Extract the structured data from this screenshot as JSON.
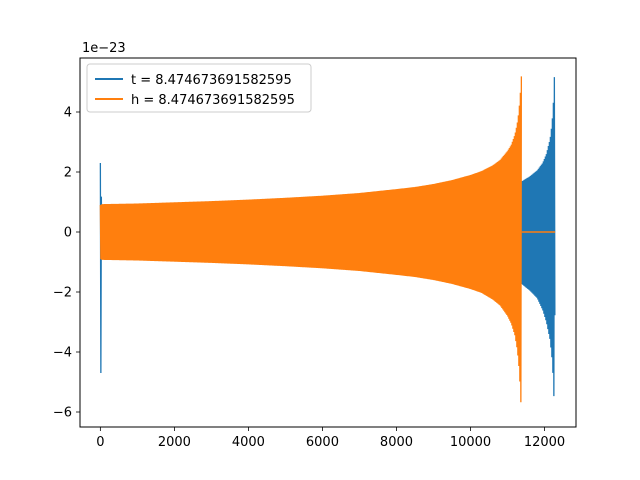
{
  "chart_data": {
    "type": "line",
    "title": "",
    "xlabel": "",
    "ylabel": "",
    "offset_text": "1e−23",
    "xlim": [
      -550,
      12850
    ],
    "ylim": [
      -6.5,
      5.8
    ],
    "xticks": [
      0,
      2000,
      4000,
      6000,
      8000,
      10000,
      12000
    ],
    "xtick_labels": [
      "0",
      "2000",
      "4000",
      "6000",
      "8000",
      "10000",
      "12000"
    ],
    "yticks": [
      -6,
      -4,
      -2,
      0,
      2,
      4
    ],
    "ytick_labels": [
      "−6",
      "−4",
      "−2",
      "0",
      "2",
      "4"
    ],
    "grid": false,
    "legend_position": "top-left",
    "series": [
      {
        "name": "t = 8.474673691582595",
        "color": "#1f77b4",
        "envelope": {
          "x": [
            0,
            15,
            30,
            60,
            200,
            1000,
            2000,
            4000,
            6000,
            8000,
            9000,
            10000,
            10500,
            11000,
            11200,
            11300,
            11400,
            11600,
            11800,
            11950,
            12050,
            12150,
            12200,
            12230,
            12250,
            12265,
            12275,
            12285
          ],
          "upper": [
            2.3,
            2.3,
            0.9,
            0.9,
            0.9,
            0.93,
            0.97,
            1.03,
            1.1,
            1.2,
            1.3,
            1.45,
            1.55,
            1.6,
            1.62,
            1.65,
            1.7,
            1.85,
            2.05,
            2.3,
            2.6,
            3.1,
            3.6,
            4.1,
            4.6,
            5.2,
            4.0,
            0.0
          ],
          "lower": [
            -4.7,
            -4.7,
            -0.9,
            -0.9,
            -0.9,
            -0.93,
            -0.97,
            -1.03,
            -1.1,
            -1.2,
            -1.3,
            -1.45,
            -1.55,
            -1.6,
            -1.62,
            -1.65,
            -1.75,
            -1.95,
            -2.2,
            -2.6,
            -3.0,
            -3.6,
            -4.2,
            -4.8,
            -5.4,
            -6.0,
            -4.5,
            0.0
          ]
        }
      },
      {
        "name": "h = 8.474673691582595",
        "color": "#ff7f0e",
        "envelope": {
          "x": [
            0,
            50,
            1000,
            2000,
            3000,
            4000,
            5000,
            6000,
            7000,
            8000,
            8500,
            9000,
            9500,
            10000,
            10300,
            10600,
            10800,
            11000,
            11100,
            11200,
            11260,
            11300,
            11330,
            11350,
            11365,
            11375,
            11385
          ],
          "upper": [
            0.9,
            0.93,
            0.95,
            0.99,
            1.03,
            1.08,
            1.14,
            1.21,
            1.3,
            1.43,
            1.5,
            1.6,
            1.73,
            1.9,
            2.03,
            2.22,
            2.4,
            2.7,
            2.9,
            3.25,
            3.6,
            3.95,
            4.35,
            4.7,
            5.1,
            5.2,
            0.0
          ],
          "lower": [
            -0.9,
            -0.93,
            -0.95,
            -0.99,
            -1.03,
            -1.08,
            -1.14,
            -1.21,
            -1.3,
            -1.43,
            -1.5,
            -1.6,
            -1.73,
            -1.9,
            -2.03,
            -2.25,
            -2.45,
            -2.8,
            -3.05,
            -3.45,
            -3.9,
            -4.35,
            -4.9,
            -5.4,
            -5.8,
            -6.0,
            0.0
          ]
        },
        "flat_after": {
          "x": [
            11385,
            12285
          ],
          "y": [
            0,
            0
          ]
        }
      }
    ]
  }
}
